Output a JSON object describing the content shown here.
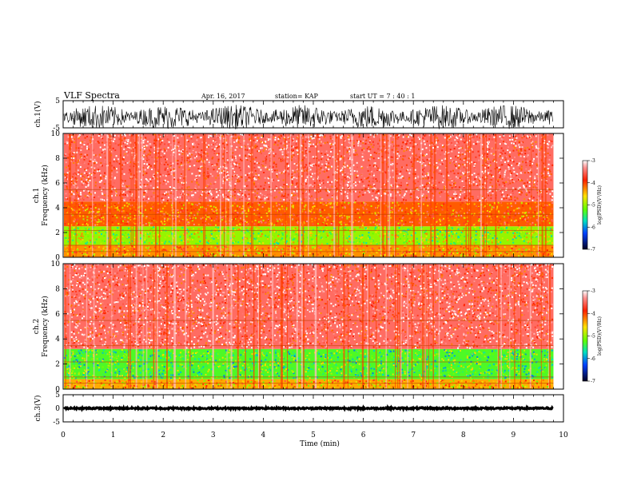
{
  "header": {
    "title": "VLF Spectra",
    "date": "Apr. 16, 2017",
    "station": "station= KAP",
    "start": "start UT = 7 : 40 : 1"
  },
  "colors": {
    "spectrum_low": "#000080",
    "spectrum_mid": "#00e080",
    "spectrum_high": "#ff2000",
    "axis": "#000000"
  },
  "chart_data": [
    {
      "type": "line",
      "panel": "ch1-waveform",
      "ylabel": "ch.1(V)",
      "ylim": [
        -5,
        5
      ],
      "yticks": [
        "5",
        "-5"
      ],
      "x_range": [
        0,
        9.8
      ],
      "description_values": {
        "mean_level": -1,
        "amplitude_range": [
          -4.5,
          4.5
        ]
      }
    },
    {
      "type": "heatmap",
      "panel": "ch1-spectrogram",
      "ylabel": "ch.1 Frequency (kHz)",
      "ylim": [
        0,
        10
      ],
      "yticks": [
        "0",
        "2",
        "4",
        "6",
        "8",
        "10"
      ],
      "x_range": [
        0,
        9.8
      ],
      "colorbar": {
        "label": "log(PSD)(V²/Hz)",
        "range": [
          -7,
          -3
        ],
        "ticks": [
          "-3",
          "-4",
          "-5",
          "-6",
          "-7"
        ]
      },
      "bands": [
        {
          "f_from": 0,
          "f_to": 1.0,
          "level": -4.3
        },
        {
          "f_from": 1.0,
          "f_to": 2.5,
          "level": -5.0
        },
        {
          "f_from": 2.5,
          "f_to": 4.5,
          "level": -4.1
        },
        {
          "f_from": 4.5,
          "f_to": 10,
          "level": -3.5
        }
      ]
    },
    {
      "type": "heatmap",
      "panel": "ch2-spectrogram",
      "ylabel": "ch.2 Frequency (kHz)",
      "ylim": [
        0,
        10
      ],
      "yticks": [
        "0",
        "2",
        "4",
        "6",
        "8",
        "10"
      ],
      "x_range": [
        0,
        9.8
      ],
      "colorbar": {
        "label": "log(PSD)(V²/Hz)",
        "range": [
          -7,
          -3
        ],
        "ticks": [
          "-3",
          "-4",
          "-5",
          "-6",
          "-7"
        ]
      },
      "bands": [
        {
          "f_from": 0,
          "f_to": 0.8,
          "level": -4.4
        },
        {
          "f_from": 0.8,
          "f_to": 3.2,
          "level": -5.3
        },
        {
          "f_from": 3.2,
          "f_to": 10,
          "level": -3.5
        }
      ]
    },
    {
      "type": "line",
      "panel": "ch3-waveform",
      "ylabel": "ch.3(V)",
      "ylim": [
        -5,
        5
      ],
      "yticks": [
        "5",
        "0",
        "-5"
      ],
      "x_range": [
        0,
        9.8
      ],
      "description_values": {
        "mean_level": 0,
        "amplitude_range": [
          -0.3,
          0.3
        ]
      }
    }
  ],
  "xaxis": {
    "label": "Time (min)",
    "ticks": [
      "0",
      "1",
      "2",
      "3",
      "4",
      "5",
      "6",
      "7",
      "8",
      "9",
      "10"
    ],
    "range": [
      0,
      10
    ]
  }
}
